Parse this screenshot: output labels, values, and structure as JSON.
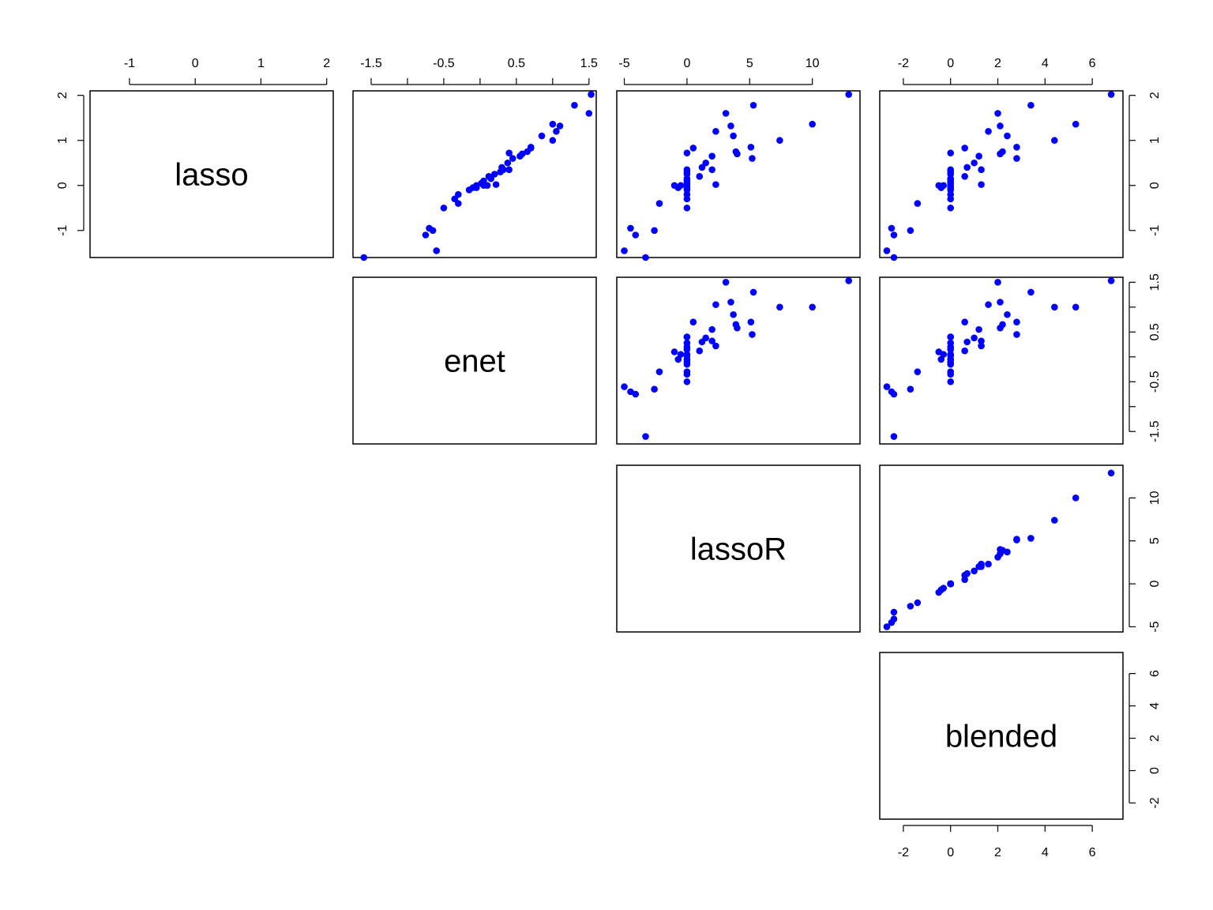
{
  "chart_data": {
    "type": "scatter",
    "subtype": "pairs-matrix-upper",
    "point_color": "#0000ff",
    "variables": [
      {
        "name": "lasso",
        "range": [
          -1.6,
          2.1
        ],
        "ticks": [
          -1,
          0,
          1,
          2
        ],
        "tick_labels": [
          "-1",
          "0",
          "1",
          "2"
        ]
      },
      {
        "name": "enet",
        "range": [
          -1.75,
          1.6
        ],
        "ticks": [
          -1.5,
          -1,
          -0.5,
          0,
          0.5,
          1,
          1.5
        ],
        "tick_labels": [
          "-1.5",
          "",
          "-0.5",
          "",
          "0.5",
          "",
          "1.5"
        ]
      },
      {
        "name": "lassoR",
        "range": [
          -5.6,
          13.8
        ],
        "ticks": [
          -5,
          0,
          5,
          10
        ],
        "tick_labels": [
          "-5",
          "0",
          "5",
          "10"
        ]
      },
      {
        "name": "blended",
        "range": [
          -3.0,
          7.3
        ],
        "ticks": [
          -2,
          0,
          2,
          4,
          6
        ],
        "tick_labels": [
          "-2",
          "0",
          "2",
          "4",
          "6"
        ]
      }
    ],
    "observations": [
      {
        "lasso": 2.02,
        "enet": 1.53,
        "lassoR": 12.9,
        "blended": 6.8
      },
      {
        "lasso": 1.78,
        "enet": 1.3,
        "lassoR": 5.3,
        "blended": 3.4
      },
      {
        "lasso": 1.6,
        "enet": 1.5,
        "lassoR": 3.1,
        "blended": 2.0
      },
      {
        "lasso": 1.36,
        "enet": 1.0,
        "lassoR": 10.0,
        "blended": 5.3
      },
      {
        "lasso": 1.32,
        "enet": 1.1,
        "lassoR": 3.5,
        "blended": 2.1
      },
      {
        "lasso": 1.2,
        "enet": 1.05,
        "lassoR": 2.3,
        "blended": 1.6
      },
      {
        "lasso": 1.1,
        "enet": 0.85,
        "lassoR": 3.7,
        "blended": 2.4
      },
      {
        "lasso": 1.0,
        "enet": 1.0,
        "lassoR": 7.4,
        "blended": 4.4
      },
      {
        "lasso": 0.85,
        "enet": 0.7,
        "lassoR": 5.1,
        "blended": 2.8
      },
      {
        "lasso": 0.83,
        "enet": 0.7,
        "lassoR": 0.5,
        "blended": 0.6
      },
      {
        "lasso": 0.75,
        "enet": 0.65,
        "lassoR": 3.9,
        "blended": 2.2
      },
      {
        "lasso": 0.7,
        "enet": 0.58,
        "lassoR": 4.0,
        "blended": 2.1
      },
      {
        "lasso": 0.65,
        "enet": 0.55,
        "lassoR": 2.0,
        "blended": 1.2
      },
      {
        "lasso": 0.6,
        "enet": 0.45,
        "lassoR": 5.2,
        "blended": 2.8
      },
      {
        "lasso": 0.72,
        "enet": 0.4,
        "lassoR": 0.0,
        "blended": 0.0
      },
      {
        "lasso": 0.5,
        "enet": 0.38,
        "lassoR": 1.5,
        "blended": 1.0
      },
      {
        "lasso": 0.4,
        "enet": 0.3,
        "lassoR": 1.2,
        "blended": 0.7
      },
      {
        "lasso": 0.35,
        "enet": 0.32,
        "lassoR": 2.0,
        "blended": 1.3
      },
      {
        "lasso": 0.3,
        "enet": 0.28,
        "lassoR": 0.0,
        "blended": 0.0
      },
      {
        "lasso": 0.25,
        "enet": 0.2,
        "lassoR": 0.0,
        "blended": 0.0
      },
      {
        "lasso": 0.2,
        "enet": 0.12,
        "lassoR": 1.0,
        "blended": 0.6
      },
      {
        "lasso": 0.15,
        "enet": 0.15,
        "lassoR": 0.0,
        "blended": 0.0
      },
      {
        "lasso": 0.1,
        "enet": 0.05,
        "lassoR": 0.0,
        "blended": 0.0
      },
      {
        "lasso": 0.05,
        "enet": 0.02,
        "lassoR": 0.0,
        "blended": 0.0
      },
      {
        "lasso": 0.0,
        "enet": -0.05,
        "lassoR": 0.0,
        "blended": 0.0
      },
      {
        "lasso": 0.02,
        "enet": 0.22,
        "lassoR": 2.3,
        "blended": 1.3
      },
      {
        "lasso": -0.05,
        "enet": -0.1,
        "lassoR": 0.0,
        "blended": 0.0
      },
      {
        "lasso": -0.1,
        "enet": -0.15,
        "lassoR": 0.0,
        "blended": 0.0
      },
      {
        "lasso": 0.0,
        "enet": 0.05,
        "lassoR": -0.5,
        "blended": -0.3
      },
      {
        "lasso": -0.2,
        "enet": -0.3,
        "lassoR": 0.0,
        "blended": 0.0
      },
      {
        "lasso": -0.3,
        "enet": -0.35,
        "lassoR": 0.0,
        "blended": 0.0
      },
      {
        "lasso": -0.5,
        "enet": -0.5,
        "lassoR": 0.0,
        "blended": 0.0
      },
      {
        "lasso": 0.35,
        "enet": 0.4,
        "lassoR": 0.0,
        "blended": 0.0
      },
      {
        "lasso": 0.0,
        "enet": 0.1,
        "lassoR": -1.0,
        "blended": -0.5
      },
      {
        "lasso": -0.05,
        "enet": -0.05,
        "lassoR": -0.7,
        "blended": -0.4
      },
      {
        "lasso": -0.4,
        "enet": -0.3,
        "lassoR": -2.2,
        "blended": -1.4
      },
      {
        "lasso": -1.0,
        "enet": -0.65,
        "lassoR": -2.6,
        "blended": -1.7
      },
      {
        "lasso": -0.95,
        "enet": -0.7,
        "lassoR": -4.5,
        "blended": -2.5
      },
      {
        "lasso": -1.1,
        "enet": -0.75,
        "lassoR": -4.1,
        "blended": -2.4
      },
      {
        "lasso": -1.45,
        "enet": -0.6,
        "lassoR": -5.0,
        "blended": -2.7
      },
      {
        "lasso": -1.6,
        "enet": -1.6,
        "lassoR": -3.3,
        "blended": -2.4
      }
    ]
  }
}
